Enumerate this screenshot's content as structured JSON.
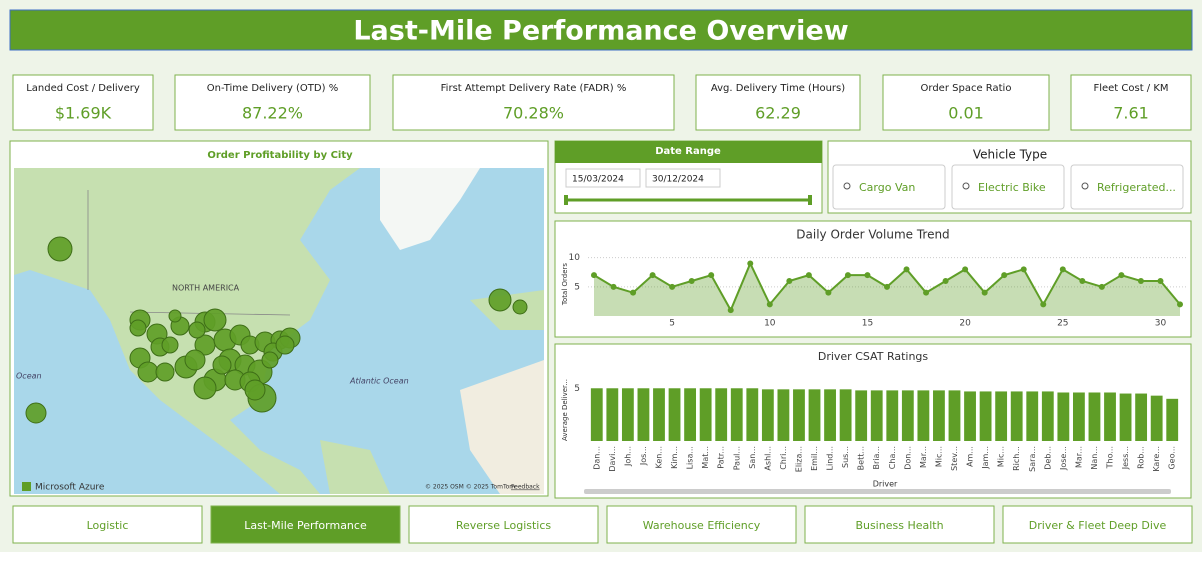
{
  "header": {
    "title": "Last-Mile Performance Overview"
  },
  "kpis": [
    {
      "label": "Landed Cost / Delivery",
      "value": "$1.69K"
    },
    {
      "label": "On-Time Delivery (OTD) %",
      "value": "87.22%"
    },
    {
      "label": "First Attempt Delivery Rate (FADR) %",
      "value": "70.28%"
    },
    {
      "label": "Avg. Delivery Time (Hours)",
      "value": "62.29"
    },
    {
      "label": "Order Space Ratio",
      "value": "0.01"
    },
    {
      "label": "Fleet Cost / KM",
      "value": "7.61"
    }
  ],
  "map": {
    "title": "Order Profitability by City",
    "labels": [
      "NORTH AMERICA",
      "Atlantic Ocean",
      "Ocean"
    ],
    "attribution": "Microsoft Azure",
    "copyright": "© 2025 OSM © 2025 TomTom",
    "feedback": "Feedback"
  },
  "date_range": {
    "title": "Date Range",
    "start": "15/03/2024",
    "end": "30/12/2024"
  },
  "vehicle_type": {
    "title": "Vehicle Type",
    "options": [
      "Cargo Van",
      "Electric Bike",
      "Refrigerated..."
    ]
  },
  "chart_data": [
    {
      "type": "line",
      "title": "Daily Order Volume Trend",
      "y_label": "Total Orders",
      "x": [
        1,
        2,
        3,
        4,
        5,
        6,
        7,
        8,
        9,
        10,
        11,
        12,
        13,
        14,
        15,
        16,
        17,
        18,
        19,
        20,
        21,
        22,
        23,
        24,
        25,
        26,
        27,
        28,
        29,
        30,
        31
      ],
      "values": [
        7,
        5,
        4,
        7,
        5,
        6,
        7,
        1,
        9,
        2,
        6,
        7,
        4,
        7,
        7,
        5,
        8,
        4,
        6,
        8,
        4,
        7,
        8,
        2,
        8,
        6,
        5,
        7,
        6,
        6,
        2
      ],
      "color": "#5f9e27",
      "xlim": [
        1,
        31
      ],
      "xticks": [
        5,
        10,
        15,
        20,
        25,
        30
      ],
      "ylim": [
        0,
        12
      ],
      "yticks": [
        5,
        10
      ],
      "grid": true
    },
    {
      "type": "bar",
      "title": "Driver CSAT Ratings",
      "y_label": "Average Deliver...",
      "x_label": "Driver",
      "categories": [
        "Dan...",
        "Davi...",
        "Joh...",
        "Jos...",
        "Ken...",
        "Kim...",
        "Lisa...",
        "Mat...",
        "Patr...",
        "Paul...",
        "San...",
        "Ashl...",
        "Chri...",
        "Eliza...",
        "Emil...",
        "Lind...",
        "Sus...",
        "Bett...",
        "Bria...",
        "Cha...",
        "Don...",
        "Mar...",
        "Mic...",
        "Stev...",
        "Am...",
        "Jam...",
        "Mic...",
        "Rich...",
        "Sara...",
        "Deb...",
        "Jose...",
        "Mar...",
        "Nan...",
        "Tho...",
        "Jess...",
        "Rob...",
        "Kare...",
        "Geo..."
      ],
      "values": [
        5,
        5,
        5,
        5,
        5,
        5,
        5,
        5,
        5,
        5,
        5,
        4.9,
        4.9,
        4.9,
        4.9,
        4.9,
        4.9,
        4.8,
        4.8,
        4.8,
        4.8,
        4.8,
        4.8,
        4.8,
        4.7,
        4.7,
        4.7,
        4.7,
        4.7,
        4.7,
        4.6,
        4.6,
        4.6,
        4.6,
        4.5,
        4.5,
        4.3,
        4.0
      ],
      "color": "#5f9e27",
      "ylim": [
        0,
        5.5
      ],
      "yticks": [
        5
      ]
    }
  ],
  "tabs": [
    "Logistic",
    "Last-Mile Performance",
    "Reverse Logistics",
    "Warehouse Efficiency",
    "Business Health",
    "Driver & Fleet Deep Dive"
  ],
  "active_tab": 1
}
